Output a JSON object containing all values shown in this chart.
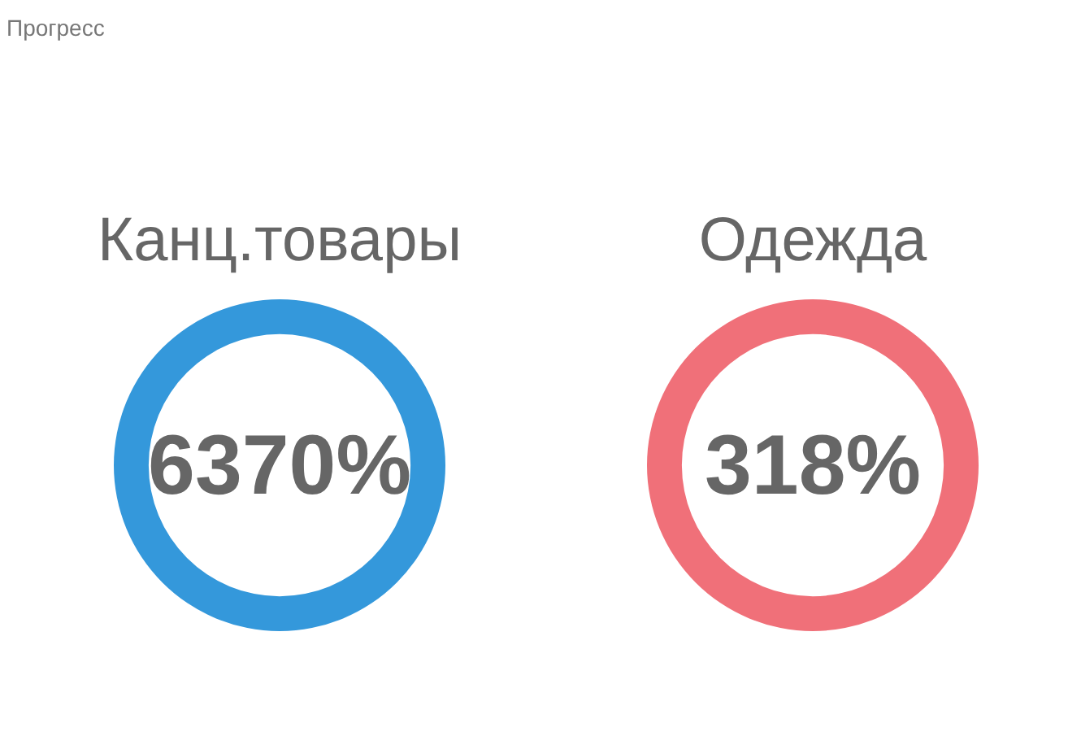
{
  "chart_data": {
    "type": "other",
    "title": "Прогресс",
    "categories": [
      "Канц.товары",
      "Одежда"
    ],
    "values": [
      6370,
      318
    ],
    "value_labels": [
      "6370%",
      "318%"
    ],
    "colors": [
      "#3498db",
      "#f07079"
    ]
  }
}
